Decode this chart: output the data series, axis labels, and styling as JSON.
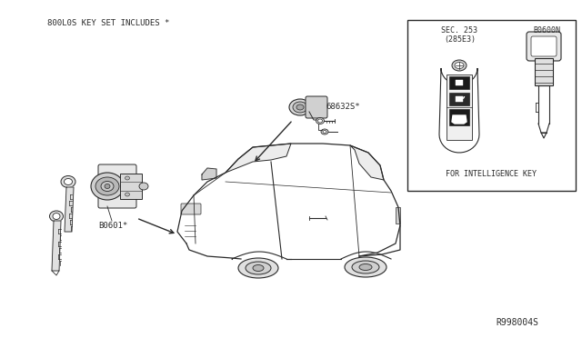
{
  "background_color": "#ffffff",
  "title_text": "800L0S KEY SET INCLUDES *",
  "part_label_b0601": "B0601*",
  "part_label_68632s": "68632S*",
  "part_label_b0600n": "B0600N",
  "part_label_sec253": "SEC. 253",
  "part_label_285e3": "(285E3)",
  "part_label_intel": "FOR INTELLIGENCE KEY",
  "part_label_r998004s": "R998004S",
  "line_color": "#2a2a2a",
  "box_fill": "#f8f8f8"
}
